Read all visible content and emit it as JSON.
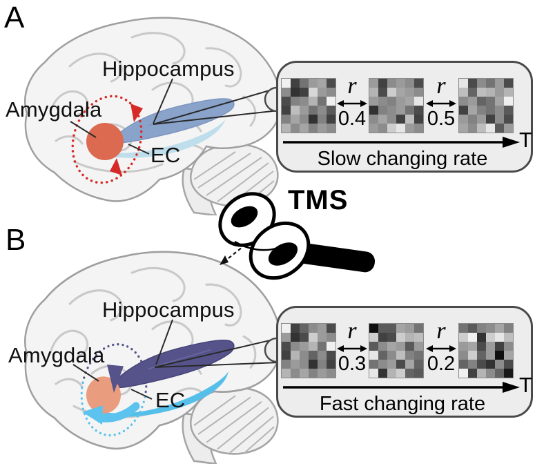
{
  "panels": [
    {
      "label": "A",
      "anatomy": {
        "hippocampus": "Hippocampus",
        "amygdala": "Amygdala",
        "ec": "EC"
      },
      "box": {
        "caption": "Slow changing rate",
        "time_label": "T",
        "correlations": [
          {
            "symbol": "r",
            "value": "0.4"
          },
          {
            "symbol": "r",
            "value": "0.5"
          }
        ],
        "matrices": [
          [
            240,
            65,
            115,
            155,
            165,
            75,
            140,
            50,
            65,
            215,
            155,
            140,
            75,
            130,
            140,
            180,
            115,
            240,
            65,
            190,
            155,
            115,
            140,
            90,
            130,
            165,
            140,
            50,
            130,
            65,
            180,
            140,
            165,
            130,
            155,
            140
          ],
          [
            155,
            65,
            140,
            155,
            140,
            75,
            180,
            75,
            205,
            165,
            155,
            140,
            155,
            140,
            130,
            155,
            165,
            230,
            50,
            130,
            140,
            155,
            115,
            75,
            140,
            165,
            140,
            65,
            190,
            65,
            155,
            140,
            205,
            230,
            155,
            140
          ],
          [
            230,
            75,
            140,
            115,
            155,
            75,
            190,
            100,
            190,
            180,
            155,
            180,
            140,
            155,
            100,
            115,
            165,
            240,
            65,
            165,
            130,
            115,
            140,
            90,
            155,
            130,
            155,
            65,
            140,
            75,
            165,
            140,
            190,
            230,
            90,
            155
          ]
        ]
      },
      "colors": {
        "hippocampus": "#8aa3cb",
        "ec": "#bfdeeb",
        "amygdala": "#dc6a50",
        "loop": "#d62a28"
      }
    },
    {
      "label": "B",
      "anatomy": {
        "hippocampus": "Hippocampus",
        "amygdala": "Amygdala",
        "ec": "EC"
      },
      "box": {
        "caption": "Fast changing rate",
        "time_label": "T",
        "correlations": [
          {
            "symbol": "r",
            "value": "0.3"
          },
          {
            "symbol": "r",
            "value": "0.2"
          }
        ],
        "matrices": [
          [
            240,
            65,
            100,
            140,
            155,
            75,
            155,
            50,
            75,
            205,
            155,
            140,
            75,
            140,
            155,
            180,
            115,
            240,
            65,
            180,
            140,
            100,
            140,
            75,
            130,
            155,
            140,
            50,
            130,
            65,
            180,
            140,
            165,
            130,
            155,
            140
          ],
          [
            15,
            90,
            90,
            165,
            155,
            115,
            205,
            65,
            75,
            205,
            180,
            190,
            90,
            140,
            165,
            155,
            90,
            155,
            230,
            100,
            140,
            190,
            130,
            115,
            115,
            140,
            155,
            75,
            165,
            100,
            230,
            50,
            180,
            205,
            100,
            90
          ],
          [
            115,
            90,
            130,
            140,
            165,
            130,
            205,
            240,
            50,
            205,
            230,
            190,
            155,
            165,
            75,
            155,
            65,
            140,
            140,
            205,
            100,
            155,
            15,
            165,
            100,
            130,
            75,
            50,
            140,
            75,
            240,
            65,
            180,
            140,
            100,
            25
          ]
        ]
      },
      "colors": {
        "hippocampus": "#55538a",
        "ec": "#55bfe9",
        "amygdala": "#e99c7e",
        "loop_top": "#55538a",
        "loop_bottom": "#5bc3ee"
      }
    }
  ],
  "tms": {
    "label": "TMS"
  }
}
